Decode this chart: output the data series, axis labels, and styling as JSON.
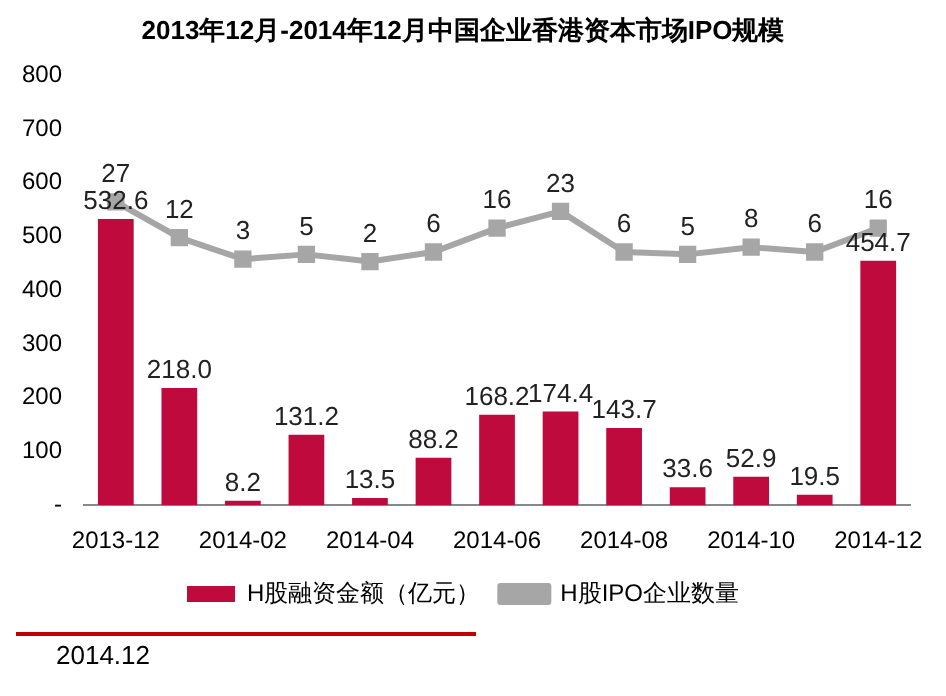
{
  "chart_data": {
    "type": "bar",
    "title": "2013年12月-2014年12月中国企业香港资本市场IPO规模",
    "categories": [
      "2013-12",
      null,
      "2014-02",
      null,
      "2014-04",
      null,
      "2014-06",
      null,
      "2014-08",
      null,
      "2014-10",
      null,
      "2014-12"
    ],
    "series": [
      {
        "name": "H股融资金额（亿元）",
        "type": "bar",
        "color": "#be0a3c",
        "values": [
          532.6,
          218.0,
          8.2,
          131.2,
          13.5,
          88.2,
          168.2,
          174.4,
          143.7,
          33.6,
          52.9,
          19.5,
          454.7
        ],
        "value_labels": [
          "532.6",
          "218.0",
          "8.2",
          "131.2",
          "13.5",
          "88.2",
          "168.2",
          "174.4",
          "143.7",
          "33.6",
          "52.9",
          "19.5",
          "454.7"
        ]
      },
      {
        "name": "H股IPO企业数量",
        "type": "line",
        "axis": "y2",
        "color": "#a6a6a6",
        "marker": "square",
        "values": [
          27,
          12,
          3,
          5,
          2,
          6,
          16,
          23,
          6,
          5,
          8,
          6,
          16
        ],
        "value_labels": [
          "27",
          "12",
          "3",
          "5",
          "2",
          "6",
          "16",
          "23",
          "6",
          "5",
          "8",
          "6",
          "16"
        ]
      }
    ],
    "ylim": [
      0,
      800
    ],
    "yticks": [
      {
        "value": 0,
        "label": "-"
      },
      100,
      200,
      300,
      400,
      500,
      600,
      700,
      800
    ],
    "legend": "bottom",
    "annotations": [
      "2014.12"
    ]
  }
}
